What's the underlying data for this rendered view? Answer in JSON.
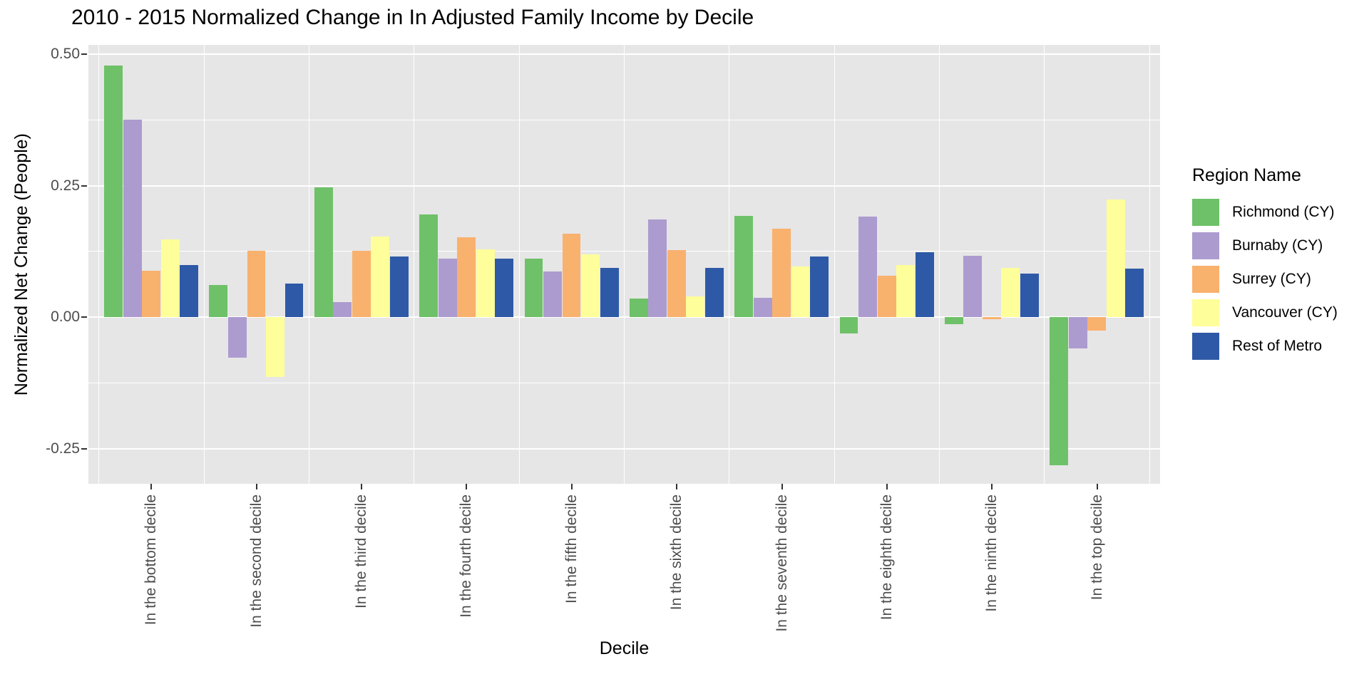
{
  "title": "2010 - 2015 Normalized Change in In Adjusted Family Income by Decile",
  "y_axis": {
    "label": "Normalized Net Change (People)",
    "ticks": [
      {
        "label": "0.50",
        "value": 0.5
      },
      {
        "label": "0.25",
        "value": 0.25
      },
      {
        "label": "0.00",
        "value": 0.0
      },
      {
        "label": "-0.25",
        "value": -0.25
      }
    ],
    "minor_ticks": [
      0.375,
      0.125,
      -0.125
    ]
  },
  "x_axis": {
    "label": "Decile"
  },
  "legend": {
    "title": "Region Name"
  },
  "chart_data": {
    "type": "bar",
    "title": "2010 - 2015 Normalized Change in In Adjusted Family Income by Decile",
    "xlabel": "Decile",
    "ylabel": "Normalized Net Change (People)",
    "categories": [
      "In the bottom decile",
      "In the second decile",
      "In the third decile",
      "In the fourth decile",
      "In the fifth decile",
      "In the sixth decile",
      "In the seventh decile",
      "In the eighth decile",
      "In the ninth decile",
      "In the top decile"
    ],
    "series": [
      {
        "name": "Richmond (CY)",
        "color": "#6EC168",
        "values": [
          0.479,
          0.061,
          0.247,
          0.195,
          0.112,
          0.035,
          0.193,
          -0.031,
          -0.013,
          -0.282
        ]
      },
      {
        "name": "Burnaby (CY)",
        "color": "#AC9BCF",
        "values": [
          0.376,
          -0.077,
          0.028,
          0.111,
          0.087,
          0.186,
          0.037,
          0.191,
          0.117,
          -0.06
        ]
      },
      {
        "name": "Surrey (CY)",
        "color": "#F9B16E",
        "values": [
          0.088,
          0.126,
          0.126,
          0.152,
          0.159,
          0.128,
          0.168,
          0.079,
          -0.004,
          -0.026
        ]
      },
      {
        "name": "Vancouver (CY)",
        "color": "#FEFE9A",
        "values": [
          0.148,
          -0.114,
          0.153,
          0.129,
          0.119,
          0.039,
          0.096,
          0.099,
          0.094,
          0.224
        ]
      },
      {
        "name": "Rest of Metro",
        "color": "#2E59A6",
        "values": [
          0.099,
          0.064,
          0.116,
          0.112,
          0.094,
          0.094,
          0.115,
          0.123,
          0.083,
          0.092
        ]
      }
    ],
    "ylim": [
      -0.317,
      0.518
    ],
    "y_major_ticks": [
      0.5,
      0.25,
      0.0,
      -0.25
    ],
    "grid": true,
    "legend_position": "right",
    "legend_title": "Region Name",
    "bar_orientation": "vertical-grouped"
  }
}
